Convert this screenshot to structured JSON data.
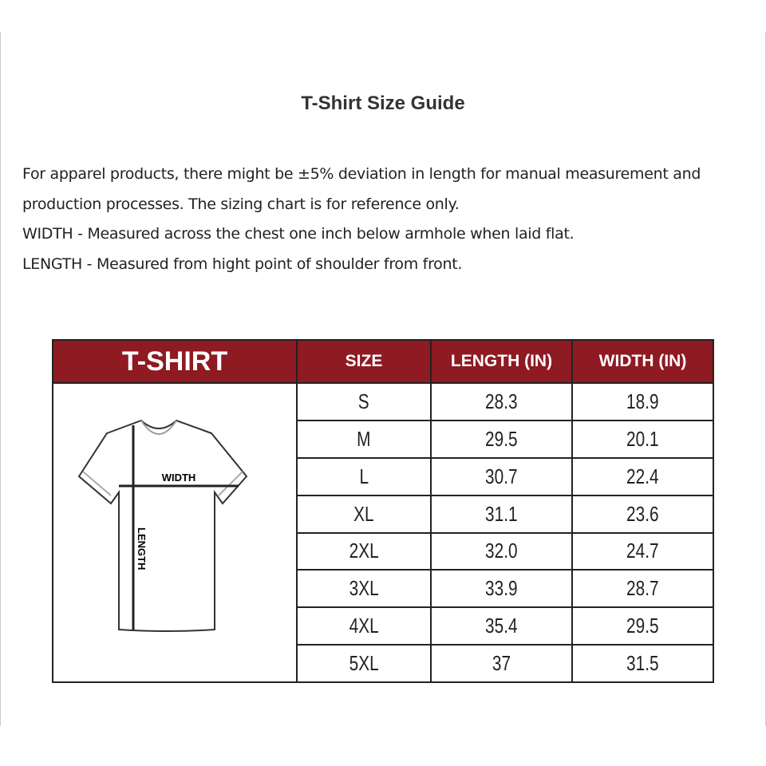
{
  "title": "T-Shirt Size Guide",
  "description": [
    "For apparel products, there might be ±5% deviation in length for manual measurement and production processes. The sizing chart is for reference only.",
    "WIDTH - Measured across the chest one inch below armhole when laid flat.",
    "LENGTH - Measured from hight point of shoulder from front."
  ],
  "table": {
    "header_color": "#8e1a22",
    "headers": [
      "T-SHIRT",
      "SIZE",
      "LENGTH (IN)",
      "WIDTH (IN)"
    ],
    "diagram_labels": {
      "width": "WIDTH",
      "length": "LENGTH"
    },
    "rows": [
      {
        "size": "S",
        "length": "28.3",
        "width": "18.9"
      },
      {
        "size": "M",
        "length": "29.5",
        "width": "20.1"
      },
      {
        "size": "L",
        "length": "30.7",
        "width": "22.4"
      },
      {
        "size": "XL",
        "length": "31.1",
        "width": "23.6"
      },
      {
        "size": "2XL",
        "length": "32.0",
        "width": "24.7"
      },
      {
        "size": "3XL",
        "length": "33.9",
        "width": "28.7"
      },
      {
        "size": "4XL",
        "length": "35.4",
        "width": "29.5"
      },
      {
        "size": "5XL",
        "length": "37",
        "width": "31.5"
      }
    ]
  }
}
